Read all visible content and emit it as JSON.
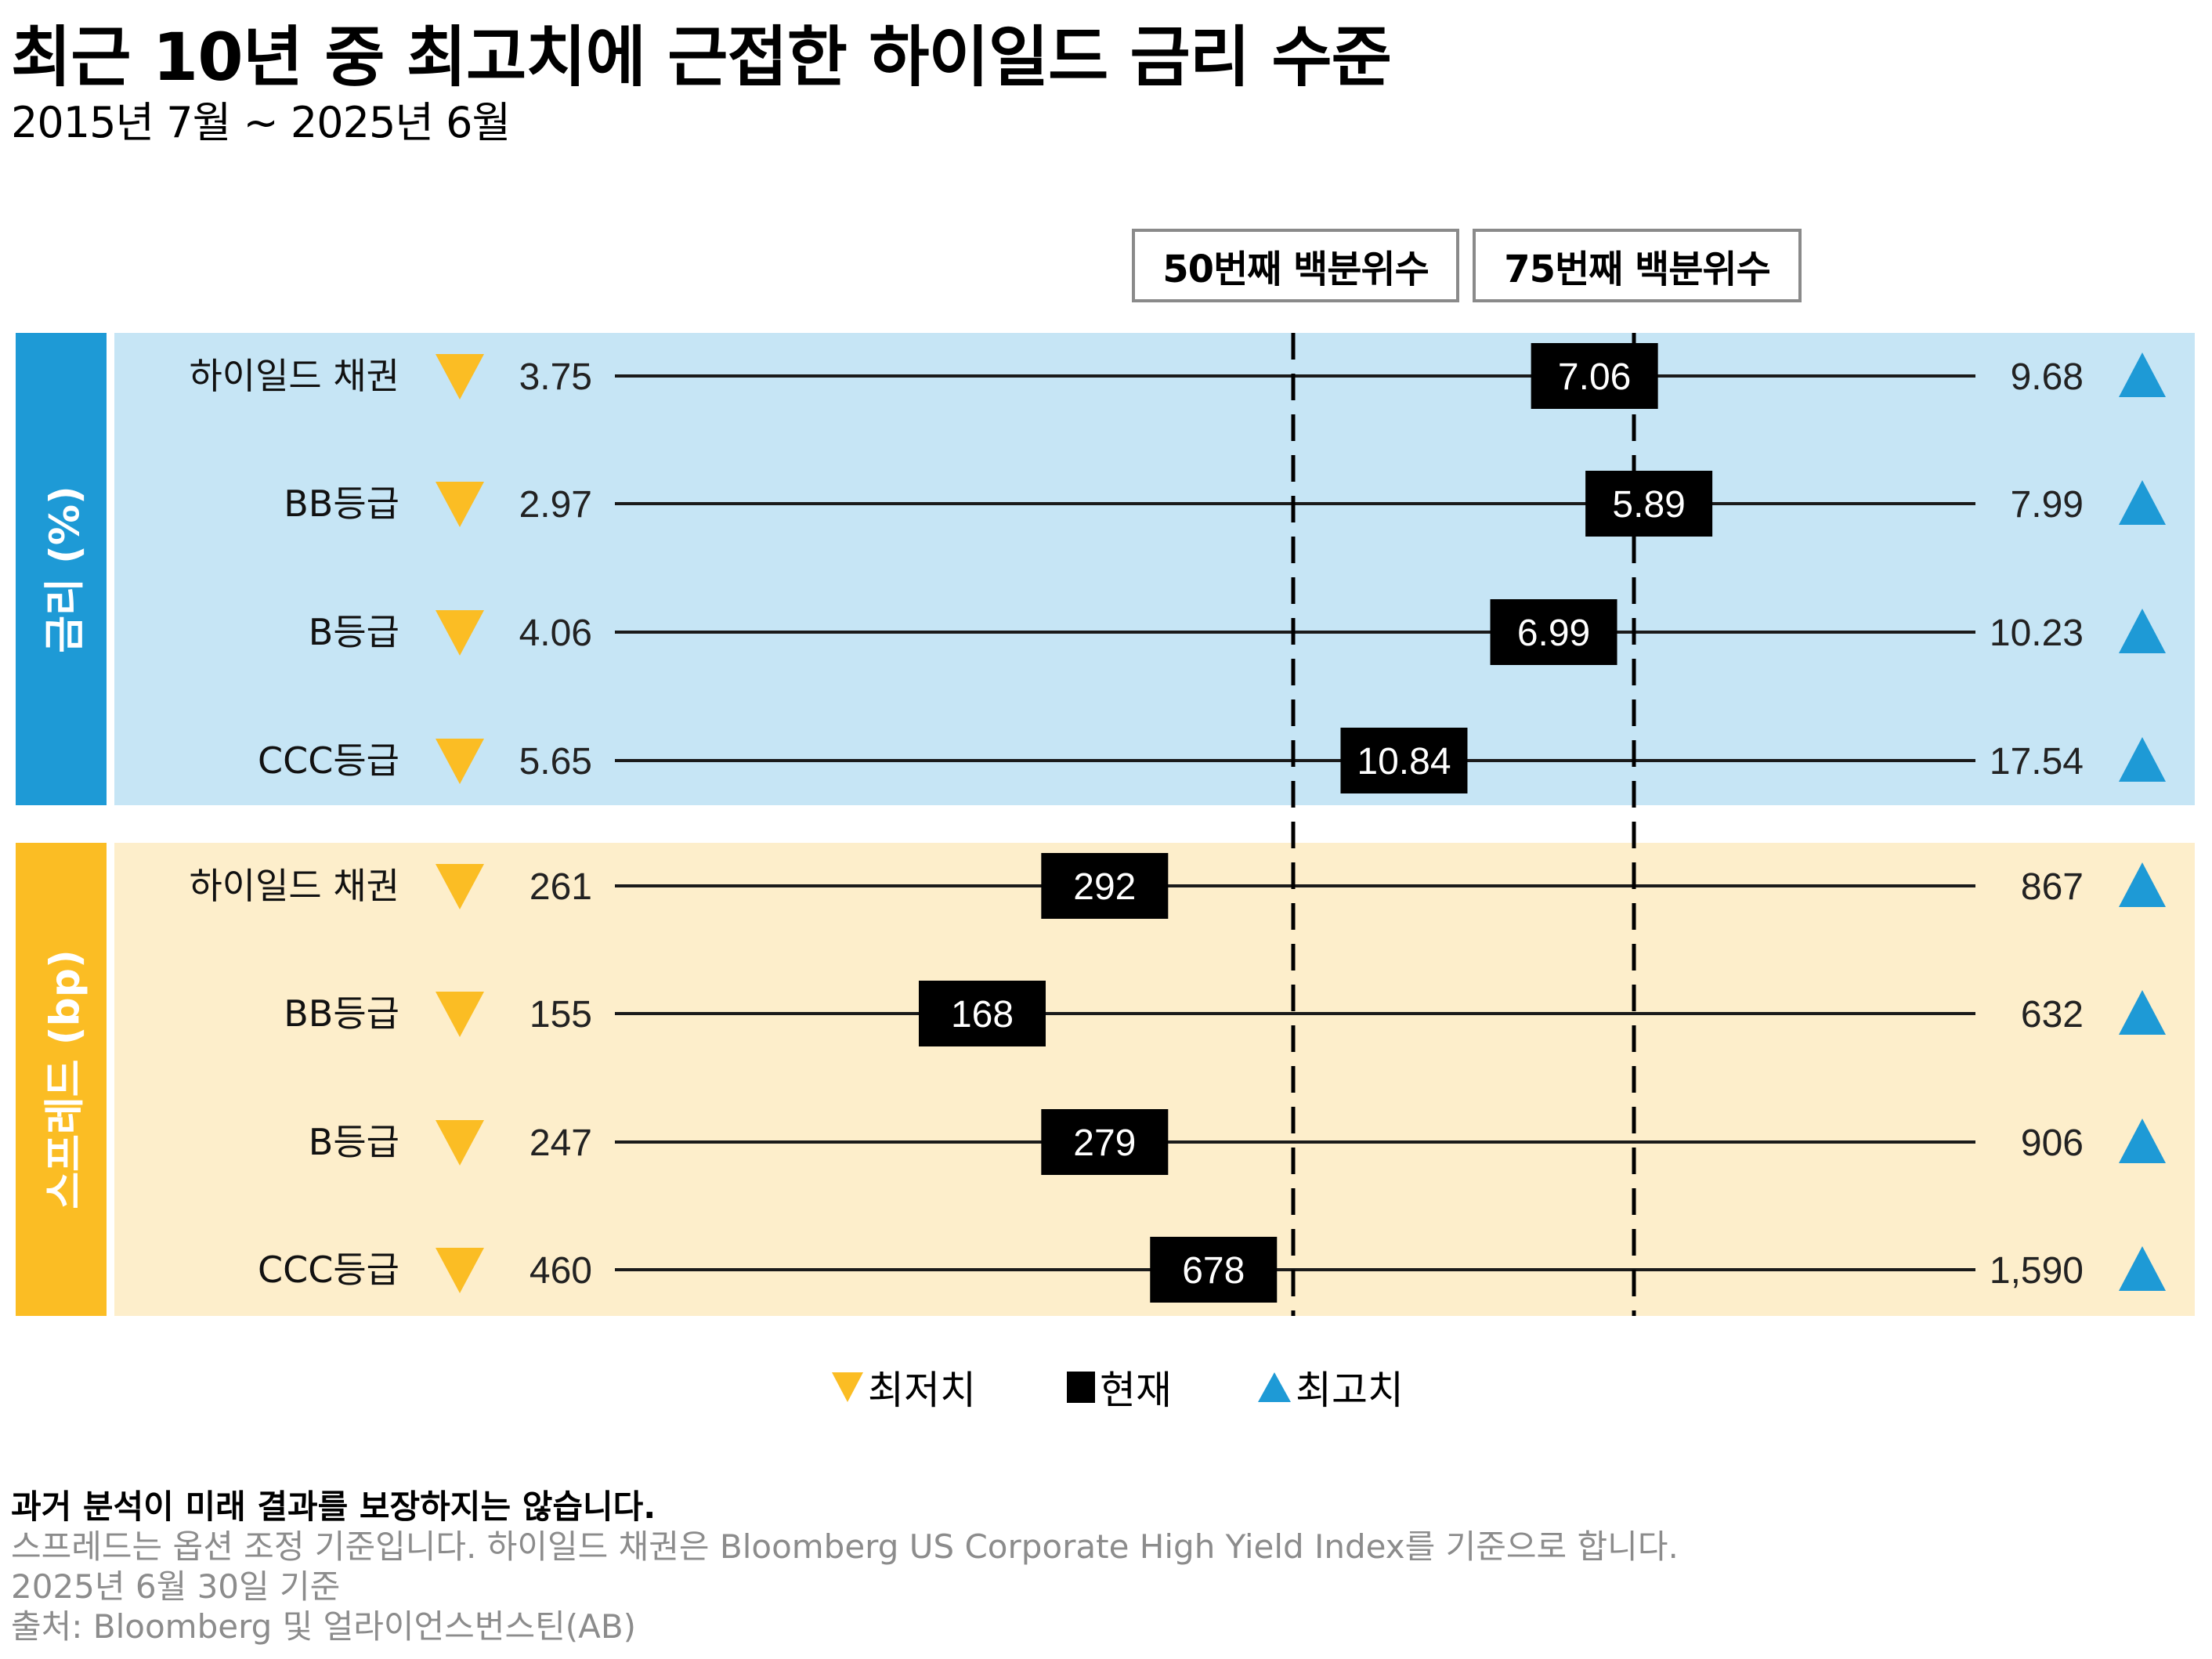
{
  "header": {
    "title": "최근 10년 중 최고치에 근접한 하이일드 금리 수준",
    "subtitle": "2015년 7월 ~ 2025년 6월"
  },
  "percentile_labels": {
    "p50": "50번째 백분위수",
    "p75": "75번째 백분위수"
  },
  "colors": {
    "yield_bar": "#1e9ad6",
    "yield_bg": "#c6e5f5",
    "spread_bar": "#fbbd24",
    "spread_bg": "#fdeecb",
    "min_marker": "#fbbd24",
    "max_marker": "#1e9ad6",
    "current_marker": "#000000"
  },
  "chart_data": {
    "type": "range-dot",
    "title": "최근 10년 중 최고치에 근접한 하이일드 금리 수준",
    "subtitle": "2015년 7월 ~ 2025년 6월",
    "reference_lines": [
      "50번째 백분위수",
      "75번째 백분위수"
    ],
    "sections": [
      {
        "name": "금리 (%)",
        "rows": [
          {
            "label": "하이일드 채권",
            "min": "3.75",
            "current": "7.06",
            "max": "9.68"
          },
          {
            "label": "BB등급",
            "min": "2.97",
            "current": "5.89",
            "max": "7.99"
          },
          {
            "label": "B등급",
            "min": "4.06",
            "current": "6.99",
            "max": "10.23"
          },
          {
            "label": "CCC등급",
            "min": "5.65",
            "current": "10.84",
            "max": "17.54"
          }
        ]
      },
      {
        "name": "스프레드 (bp)",
        "rows": [
          {
            "label": "하이일드 채권",
            "min": "261",
            "current": "292",
            "max": "867"
          },
          {
            "label": "BB등급",
            "min": "155",
            "current": "168",
            "max": "632"
          },
          {
            "label": "B등급",
            "min": "247",
            "current": "279",
            "max": "906"
          },
          {
            "label": "CCC등급",
            "min": "460",
            "current": "678",
            "max": "1,590"
          }
        ]
      }
    ],
    "current_position_fraction": [
      [
        0.72,
        0.76,
        0.69,
        0.58
      ],
      [
        0.36,
        0.27,
        0.36,
        0.44
      ]
    ],
    "legend": [
      "최저치",
      "현재",
      "최고치"
    ],
    "legend_position": "bottom-center"
  },
  "legend": {
    "min": "최저치",
    "current": "현재",
    "max": "최고치"
  },
  "footer": {
    "disclaimer": "과거 분석이 미래 결과를 보장하지는 않습니다.",
    "note": "스프레드는 옵션 조정 기준입니다. 하이일드 채권은 Bloomberg US Corporate High Yield Index를 기준으로 합니다.",
    "date": "2025년 6월 30일 기준",
    "source": "출처: Bloomberg 및 얼라이언스번스틴(AB)"
  }
}
